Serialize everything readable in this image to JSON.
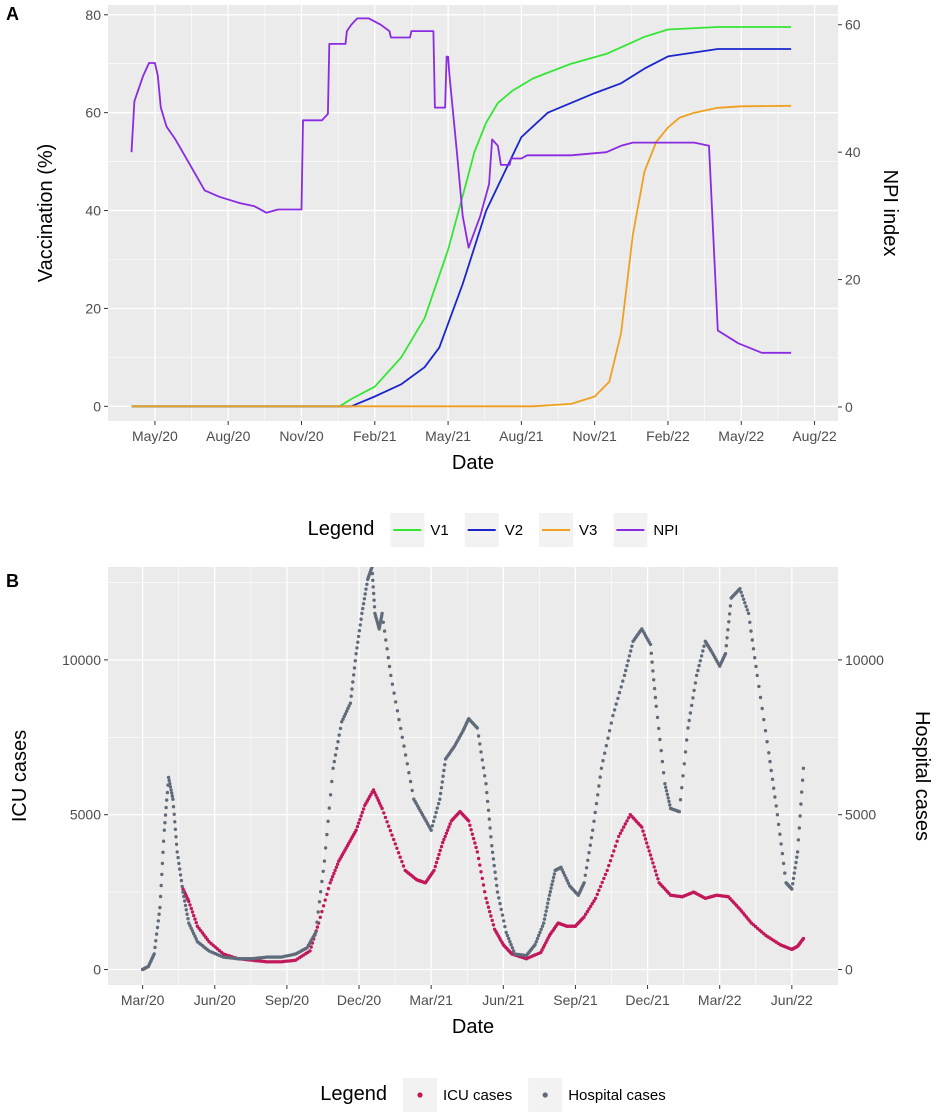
{
  "panels": {
    "a_label": "A",
    "b_label": "B"
  },
  "colors": {
    "panel_bg": "#EBEBEB",
    "grid": "#FFFFFF",
    "axis_text": "#4D4D4D",
    "v1": "#33E633",
    "v2": "#1A26CC",
    "v3": "#F0A020",
    "npi": "#8A2BE2",
    "icu": "#C2185B",
    "hospital": "#5F6B7A"
  },
  "chart_data": [
    {
      "id": "A",
      "type": "line",
      "xlabel": "Date",
      "ylabel": "Vaccination (%)",
      "y2label": "NPI index",
      "xlim": [
        2020.17,
        2022.66
      ],
      "ylim": [
        -3,
        82
      ],
      "y2lim": [
        -2.2,
        63.1
      ],
      "x_ticks": [
        {
          "x": 2020.33,
          "label": "May/20"
        },
        {
          "x": 2020.58,
          "label": "Aug/20"
        },
        {
          "x": 2020.83,
          "label": "Nov/20"
        },
        {
          "x": 2021.08,
          "label": "Feb/21"
        },
        {
          "x": 2021.33,
          "label": "May/21"
        },
        {
          "x": 2021.58,
          "label": "Aug/21"
        },
        {
          "x": 2021.83,
          "label": "Nov/21"
        },
        {
          "x": 2022.08,
          "label": "Feb/22"
        },
        {
          "x": 2022.33,
          "label": "May/22"
        },
        {
          "x": 2022.58,
          "label": "Aug/22"
        }
      ],
      "y_ticks": [
        0,
        20,
        40,
        60,
        80
      ],
      "y2_ticks": [
        0,
        20,
        40,
        60
      ],
      "legend_title": "Legend",
      "legend_position": "bottom",
      "series": [
        {
          "name": "V1",
          "color_key": "v1",
          "axis": "left",
          "x": [
            2020.25,
            2020.96,
            2021.0,
            2021.08,
            2021.17,
            2021.25,
            2021.33,
            2021.38,
            2021.42,
            2021.46,
            2021.5,
            2021.55,
            2021.62,
            2021.75,
            2021.87,
            2022.0,
            2022.08,
            2022.25,
            2022.5
          ],
          "y": [
            0,
            0,
            1.5,
            4,
            10,
            18,
            32,
            43,
            52,
            58,
            62,
            64.5,
            67,
            70,
            72,
            75.5,
            77,
            77.5,
            77.5
          ]
        },
        {
          "name": "V2",
          "color_key": "v2",
          "axis": "left",
          "x": [
            2020.25,
            2021.0,
            2021.08,
            2021.17,
            2021.25,
            2021.3,
            2021.38,
            2021.46,
            2021.54,
            2021.58,
            2021.67,
            2021.83,
            2021.92,
            2022.0,
            2022.08,
            2022.25,
            2022.5
          ],
          "y": [
            0,
            0,
            2,
            4.5,
            8,
            12,
            25,
            40,
            50,
            55,
            60,
            64,
            66,
            69,
            71.5,
            73,
            73
          ]
        },
        {
          "name": "V3",
          "color_key": "v3",
          "axis": "left",
          "x": [
            2020.25,
            2021.62,
            2021.75,
            2021.83,
            2021.88,
            2021.92,
            2021.96,
            2022.0,
            2022.04,
            2022.08,
            2022.12,
            2022.17,
            2022.25,
            2022.33,
            2022.5
          ],
          "y": [
            0,
            0,
            0.5,
            2,
            5,
            15,
            35,
            48,
            54,
            57,
            59,
            60,
            61,
            61.3,
            61.4
          ]
        },
        {
          "name": "NPI",
          "color_key": "npi",
          "axis": "right",
          "x": [
            2020.25,
            2020.26,
            2020.29,
            2020.31,
            2020.33,
            2020.34,
            2020.35,
            2020.37,
            2020.4,
            2020.45,
            2020.5,
            2020.55,
            2020.62,
            2020.67,
            2020.71,
            2020.75,
            2020.83,
            2020.835,
            2020.9,
            2020.92,
            2020.925,
            2020.98,
            2020.985,
            2021.0,
            2021.02,
            2021.06,
            2021.1,
            2021.13,
            2021.135,
            2021.2,
            2021.205,
            2021.28,
            2021.285,
            2021.32,
            2021.325,
            2021.33,
            2021.335,
            2021.36,
            2021.38,
            2021.4,
            2021.44,
            2021.47,
            2021.48,
            2021.5,
            2021.51,
            2021.54,
            2021.545,
            2021.58,
            2021.6,
            2021.62,
            2021.66,
            2021.75,
            2021.87,
            2021.92,
            2021.96,
            2022.0,
            2022.04,
            2022.08,
            2022.12,
            2022.17,
            2022.22,
            2022.25,
            2022.32,
            2022.4,
            2022.5
          ],
          "y": [
            40,
            48,
            52,
            54,
            54,
            52,
            47,
            44,
            42,
            38,
            34,
            33,
            32,
            31.5,
            30.5,
            31,
            31,
            45,
            45,
            46,
            57,
            57,
            59,
            60,
            61,
            61,
            60,
            59,
            58,
            58,
            59,
            59,
            47,
            47,
            55,
            55,
            52,
            40,
            30,
            25,
            30,
            35,
            42,
            41,
            38,
            38,
            39,
            39,
            39.5,
            39.5,
            39.5,
            39.5,
            40,
            41,
            41.5,
            41.5,
            41.5,
            41.5,
            41.5,
            41.5,
            41,
            12,
            10,
            8.5,
            8.5
          ]
        }
      ]
    },
    {
      "id": "B",
      "type": "scatter",
      "xlabel": "Date",
      "ylabel": "ICU cases",
      "y2label": "Hospital cases",
      "xlim": [
        2020.05,
        2022.58
      ],
      "ylim": [
        -500,
        13000
      ],
      "y2lim": [
        -500,
        13000
      ],
      "x_ticks": [
        {
          "x": 2020.17,
          "label": "Mar/20"
        },
        {
          "x": 2020.42,
          "label": "Jun/20"
        },
        {
          "x": 2020.67,
          "label": "Sep/20"
        },
        {
          "x": 2020.92,
          "label": "Dec/20"
        },
        {
          "x": 2021.17,
          "label": "Mar/21"
        },
        {
          "x": 2021.42,
          "label": "Jun/21"
        },
        {
          "x": 2021.67,
          "label": "Sep/21"
        },
        {
          "x": 2021.92,
          "label": "Dec/21"
        },
        {
          "x": 2022.17,
          "label": "Mar/22"
        },
        {
          "x": 2022.42,
          "label": "Jun/22"
        }
      ],
      "y_ticks": [
        0,
        5000,
        10000
      ],
      "y2_ticks": [
        0,
        5000,
        10000
      ],
      "legend_title": "Legend",
      "legend_position": "bottom",
      "series": [
        {
          "name": "ICU cases",
          "color_key": "icu",
          "axis": "left",
          "x": [
            2020.31,
            2020.33,
            2020.36,
            2020.4,
            2020.45,
            2020.5,
            2020.55,
            2020.6,
            2020.65,
            2020.7,
            2020.75,
            2020.78,
            2020.82,
            2020.85,
            2020.88,
            2020.91,
            2020.94,
            2020.97,
            2021.0,
            2021.04,
            2021.08,
            2021.12,
            2021.15,
            2021.18,
            2021.21,
            2021.24,
            2021.27,
            2021.3,
            2021.33,
            2021.36,
            2021.39,
            2021.42,
            2021.45,
            2021.5,
            2021.55,
            2021.58,
            2021.61,
            2021.64,
            2021.67,
            2021.7,
            2021.74,
            2021.78,
            2021.82,
            2021.86,
            2021.9,
            2021.93,
            2021.96,
            2022.0,
            2022.04,
            2022.08,
            2022.12,
            2022.16,
            2022.2,
            2022.24,
            2022.28,
            2022.33,
            2022.38,
            2022.42,
            2022.44,
            2022.46
          ],
          "y": [
            2600,
            2200,
            1400,
            900,
            500,
            350,
            300,
            250,
            250,
            300,
            600,
            1500,
            2800,
            3500,
            4000,
            4500,
            5300,
            5800,
            5200,
            4200,
            3200,
            2900,
            2800,
            3200,
            4100,
            4800,
            5100,
            4800,
            3800,
            2300,
            1300,
            800,
            500,
            350,
            550,
            1100,
            1500,
            1400,
            1400,
            1700,
            2300,
            3200,
            4300,
            5000,
            4600,
            3700,
            2800,
            2400,
            2350,
            2500,
            2300,
            2400,
            2350,
            1950,
            1500,
            1100,
            800,
            650,
            750,
            1000
          ]
        },
        {
          "name": "Hospital cases",
          "color_key": "hospital",
          "axis": "right",
          "x": [
            2020.17,
            2020.19,
            2020.21,
            2020.23,
            2020.245,
            2020.26,
            2020.275,
            2020.29,
            2020.31,
            2020.33,
            2020.36,
            2020.4,
            2020.45,
            2020.5,
            2020.55,
            2020.6,
            2020.65,
            2020.7,
            2020.74,
            2020.77,
            2020.8,
            2020.83,
            2020.86,
            2020.89,
            2020.91,
            2020.93,
            2020.95,
            2020.965,
            2020.975,
            2020.99,
            2021.0,
            2021.03,
            2021.07,
            2021.11,
            2021.14,
            2021.17,
            2021.2,
            2021.22,
            2021.25,
            2021.28,
            2021.3,
            2021.33,
            2021.36,
            2021.38,
            2021.4,
            2021.43,
            2021.46,
            2021.5,
            2021.53,
            2021.56,
            2021.58,
            2021.6,
            2021.62,
            2021.65,
            2021.68,
            2021.7,
            2021.73,
            2021.76,
            2021.8,
            2021.84,
            2021.87,
            2021.9,
            2021.93,
            2021.95,
            2021.98,
            2022.0,
            2022.03,
            2022.06,
            2022.09,
            2022.12,
            2022.14,
            2022.17,
            2022.19,
            2022.21,
            2022.24,
            2022.27,
            2022.3,
            2022.34,
            2022.37,
            2022.4,
            2022.42,
            2022.44,
            2022.46
          ],
          "y": [
            0,
            100,
            500,
            2000,
            4500,
            6200,
            5500,
            3800,
            2500,
            1500,
            900,
            600,
            400,
            350,
            350,
            400,
            400,
            500,
            700,
            1200,
            3500,
            6500,
            8000,
            8600,
            10200,
            11500,
            12600,
            13000,
            11500,
            11000,
            11500,
            9500,
            7500,
            5500,
            5000,
            4500,
            5500,
            6800,
            7200,
            7700,
            8100,
            7800,
            6000,
            4000,
            2500,
            1200,
            500,
            450,
            800,
            1500,
            2400,
            3200,
            3300,
            2700,
            2400,
            2800,
            4500,
            6500,
            8200,
            9500,
            10600,
            11000,
            10500,
            8500,
            6000,
            5200,
            5100,
            7800,
            9500,
            10600,
            10300,
            9800,
            10200,
            12000,
            12300,
            11500,
            9500,
            7000,
            5000,
            2800,
            2600,
            3800,
            6500
          ]
        }
      ]
    }
  ]
}
